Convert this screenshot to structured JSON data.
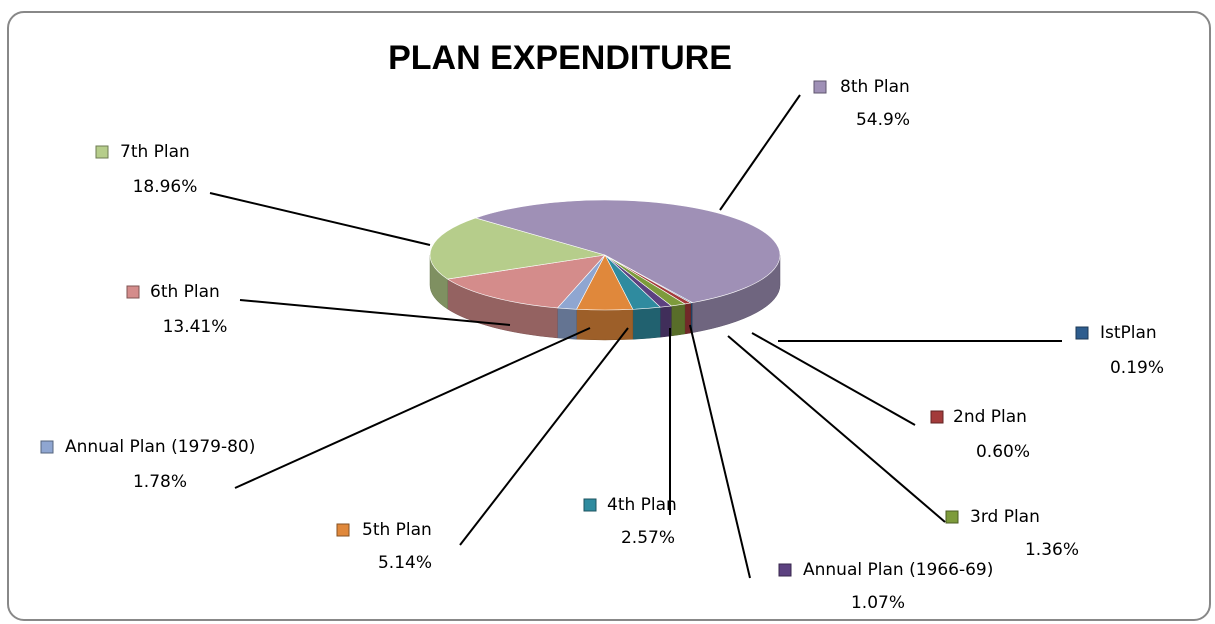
{
  "chart_data": {
    "type": "pie",
    "title": "PLAN EXPENDITURE",
    "categories": [
      "IstPlan",
      "2nd Plan",
      "3rd Plan",
      "Annual Plan (1966-69)",
      "4th Plan",
      "5th Plan",
      "Annual Plan (1979-80)",
      "6th Plan",
      "7th Plan",
      "8th Plan"
    ],
    "values": [
      0.19,
      0.6,
      1.36,
      1.07,
      2.57,
      5.14,
      1.78,
      13.41,
      18.96,
      54.9
    ],
    "value_labels": [
      "0.19%",
      "0.60%",
      "1.36%",
      "1.07%",
      "2.57%",
      "5.14%",
      "1.78%",
      "13.41%",
      "18.96%",
      "54.9%"
    ],
    "colors": [
      "#2e5d8e",
      "#a33b3b",
      "#7d9b3b",
      "#5c4180",
      "#2f8b9f",
      "#e0883b",
      "#8fa6d1",
      "#d48c8b",
      "#b6cd8b",
      "#9f90b6"
    ]
  }
}
